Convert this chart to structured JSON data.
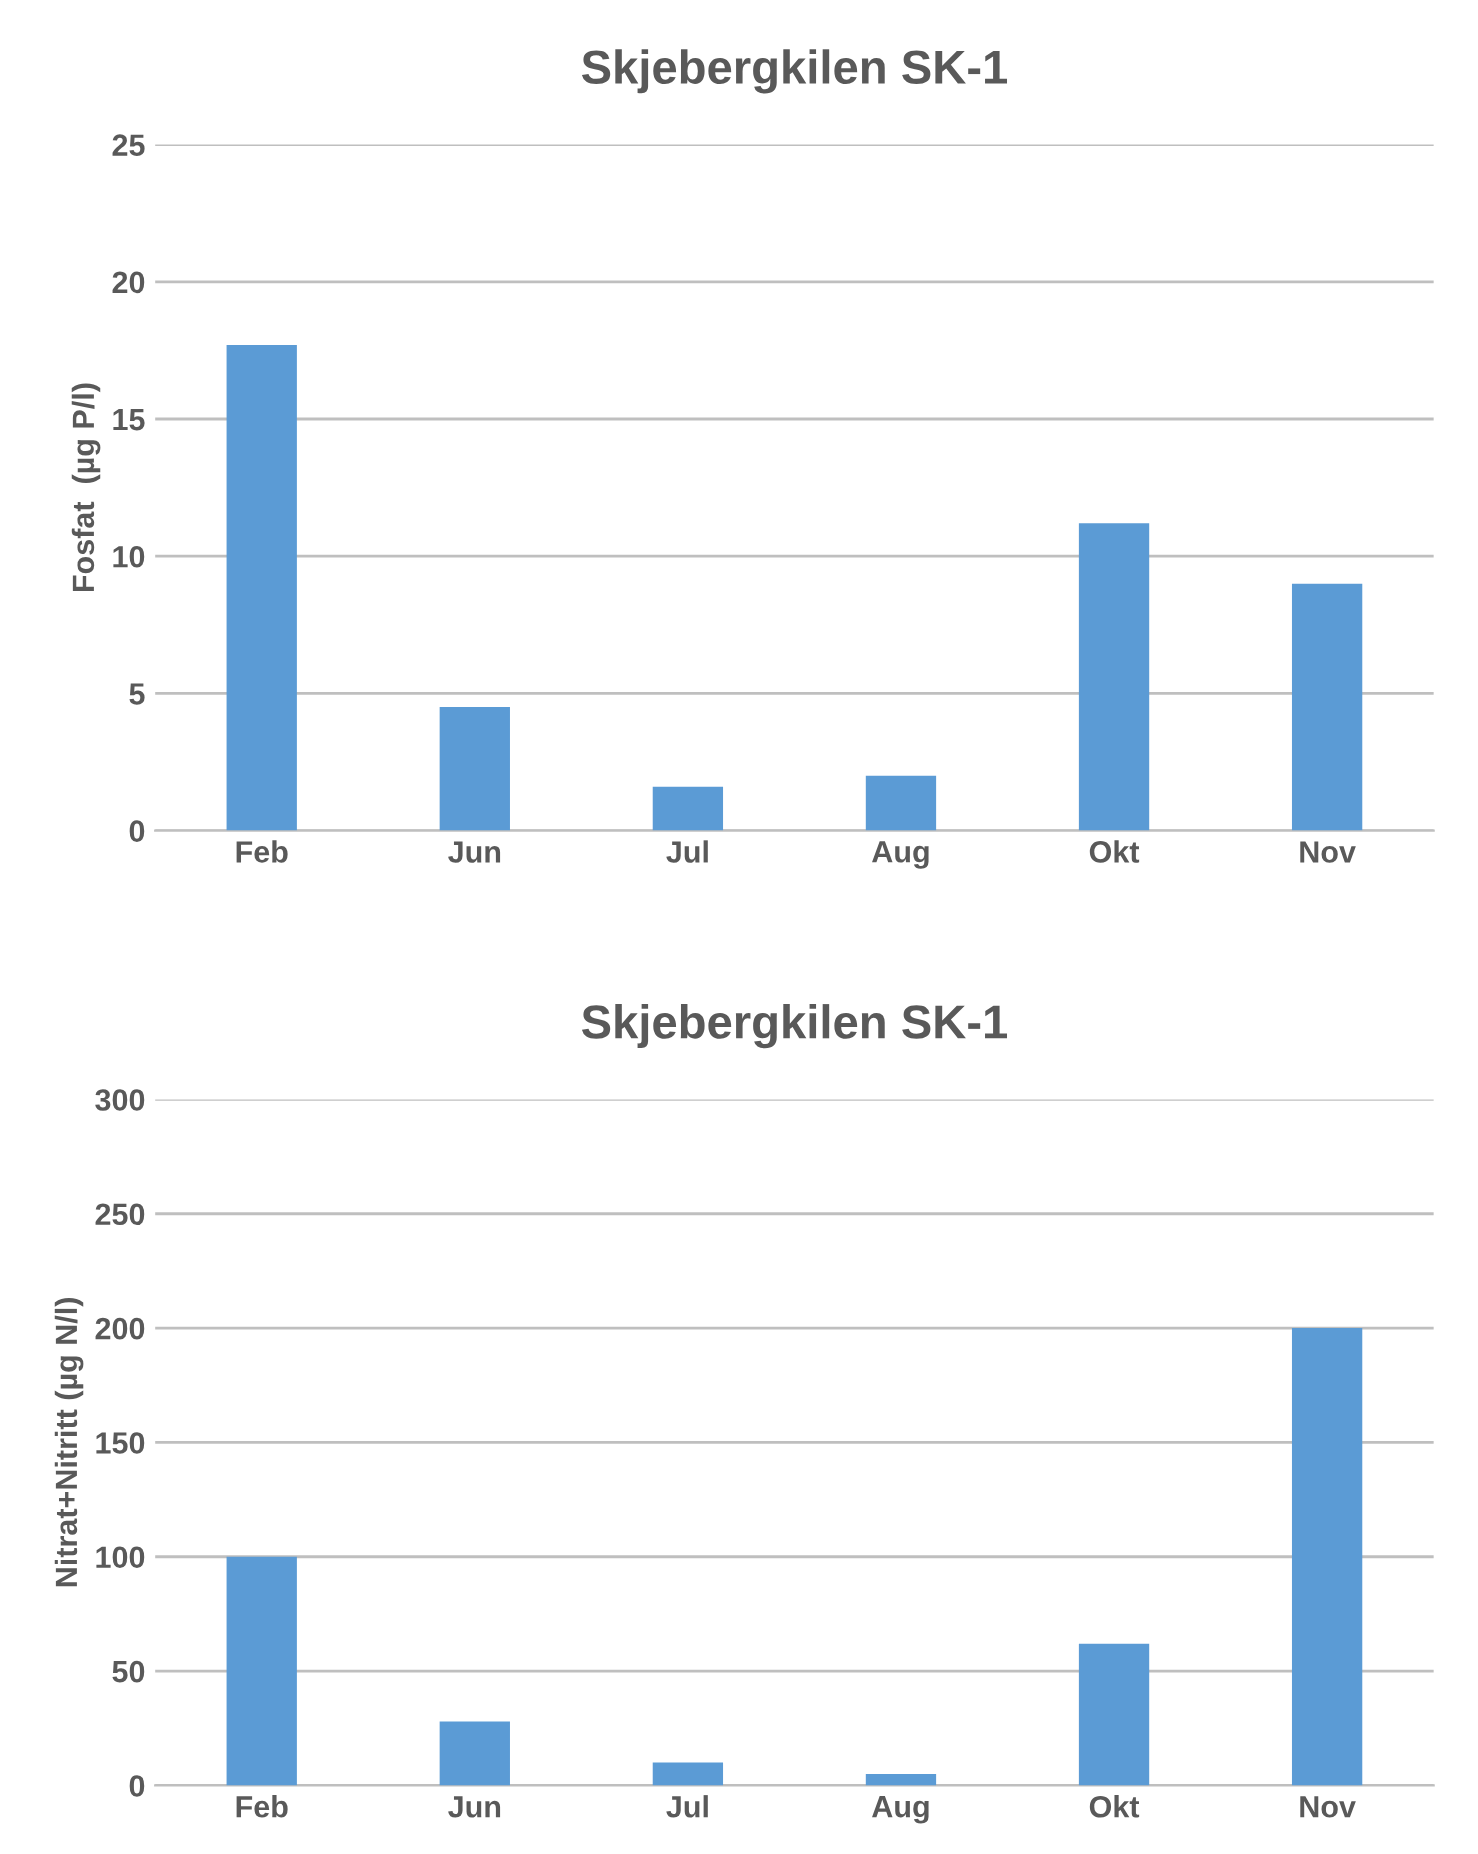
{
  "chart_data": [
    {
      "type": "bar",
      "title": "Skjebergkilen SK-1",
      "ylabel": "Fosfat  (µg P/l)",
      "categories": [
        "Feb",
        "Jun",
        "Jul",
        "Aug",
        "Okt",
        "Nov"
      ],
      "series": [
        {
          "color": "#5b9bd5",
          "values": [
            17.7,
            4.5,
            1.6,
            2.0,
            11.2,
            9.0
          ]
        }
      ],
      "ylim": [
        0,
        25
      ],
      "yticks": [
        0,
        5,
        10,
        15,
        20,
        25
      ],
      "grid": "y",
      "legend": false
    },
    {
      "type": "bar",
      "title": "Skjebergkilen SK-1",
      "ylabel": "Nitrat+Nitritt (µg N/l)",
      "categories": [
        "Feb",
        "Jun",
        "Jul",
        "Aug",
        "Okt",
        "Nov"
      ],
      "series": [
        {
          "color": "#5b9bd5",
          "values": [
            100,
            28,
            10,
            5,
            62,
            200
          ]
        }
      ],
      "ylim": [
        0,
        300
      ],
      "yticks": [
        0,
        50,
        100,
        150,
        200,
        250,
        300
      ],
      "grid": "y",
      "legend": false
    }
  ]
}
